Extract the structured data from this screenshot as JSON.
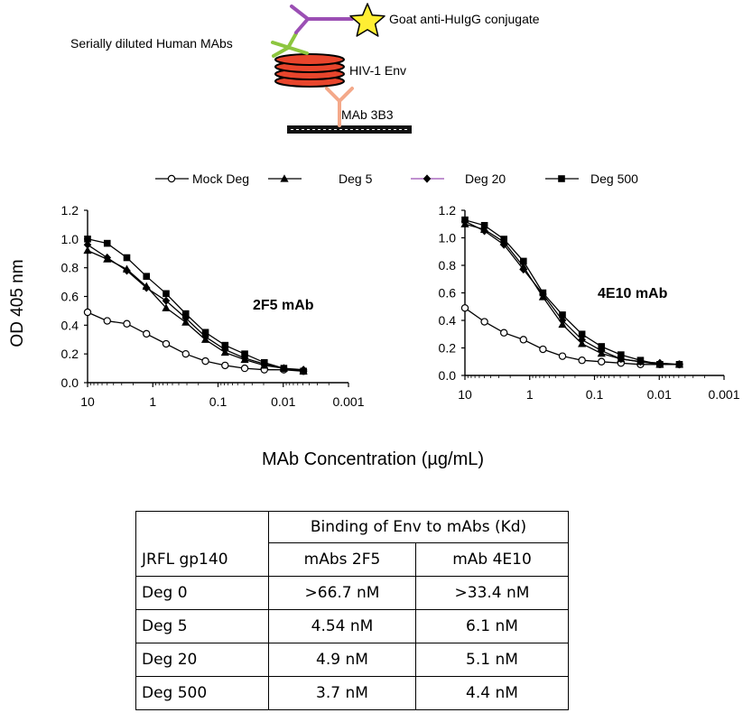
{
  "diagram": {
    "conjugate_label": "Goat anti-HuIgG conjugate",
    "human_mab_label": "Serially diluted Human MAbs",
    "env_label": "HIV-1 Env",
    "capture_label": "MAb 3B3"
  },
  "legend": [
    {
      "name": "Mock Deg",
      "marker": "open-circle"
    },
    {
      "name": "Deg 5",
      "marker": "triangle"
    },
    {
      "name": "Deg 20",
      "marker": "diamond"
    },
    {
      "name": "Deg 500",
      "marker": "square"
    }
  ],
  "ylabel": "OD 405 nm",
  "xlabel": "MAb Concentration (µg/mL)",
  "chart_data": [
    {
      "type": "line",
      "title": "2F5 mAb",
      "xscale": "log-reversed",
      "xlim": [
        10,
        0.001
      ],
      "ylim": [
        0,
        1.2
      ],
      "xticks": [
        "10",
        "1",
        "0.1",
        "0.01",
        "0.001"
      ],
      "yticks": [
        "0.0",
        "0.2",
        "0.4",
        "0.6",
        "0.8",
        "1.0",
        "1.2"
      ],
      "x": [
        10,
        5,
        2.5,
        1.25,
        0.625,
        0.3125,
        0.156,
        0.078,
        0.039,
        0.0195,
        0.0098,
        0.0049
      ],
      "series": [
        {
          "name": "Mock Deg",
          "values": [
            0.49,
            0.43,
            0.41,
            0.34,
            0.27,
            0.2,
            0.15,
            0.12,
            0.1,
            0.09,
            0.09,
            0.08
          ]
        },
        {
          "name": "Deg 5",
          "values": [
            0.92,
            0.86,
            0.79,
            0.67,
            0.52,
            0.42,
            0.3,
            0.21,
            0.16,
            0.12,
            0.1,
            0.08
          ]
        },
        {
          "name": "Deg 20",
          "values": [
            0.96,
            0.87,
            0.78,
            0.66,
            0.57,
            0.45,
            0.32,
            0.23,
            0.17,
            0.13,
            0.1,
            0.09
          ]
        },
        {
          "name": "Deg 500",
          "values": [
            1.0,
            0.97,
            0.87,
            0.74,
            0.62,
            0.48,
            0.35,
            0.26,
            0.2,
            0.14,
            0.1,
            0.08
          ]
        }
      ]
    },
    {
      "type": "line",
      "title": "4E10 mAb",
      "xscale": "log-reversed",
      "xlim": [
        10,
        0.001
      ],
      "ylim": [
        0,
        1.2
      ],
      "xticks": [
        "10",
        "1",
        "0.1",
        "0.01",
        "0.001"
      ],
      "yticks": [
        "0.0",
        "0.2",
        "0.4",
        "0.6",
        "0.8",
        "1.0",
        "1.2"
      ],
      "x": [
        10,
        5,
        2.5,
        1.25,
        0.625,
        0.3125,
        0.156,
        0.078,
        0.039,
        0.0195,
        0.0098,
        0.0049
      ],
      "series": [
        {
          "name": "Mock Deg",
          "values": [
            0.49,
            0.39,
            0.31,
            0.26,
            0.19,
            0.14,
            0.11,
            0.1,
            0.09,
            0.08,
            0.08,
            0.08
          ]
        },
        {
          "name": "Deg 5",
          "values": [
            1.1,
            1.06,
            0.97,
            0.79,
            0.57,
            0.37,
            0.23,
            0.16,
            0.12,
            0.1,
            0.08,
            0.08
          ]
        },
        {
          "name": "Deg 20",
          "values": [
            1.12,
            1.05,
            0.95,
            0.77,
            0.59,
            0.4,
            0.26,
            0.18,
            0.12,
            0.1,
            0.09,
            0.08
          ]
        },
        {
          "name": "Deg 500",
          "values": [
            1.13,
            1.09,
            0.99,
            0.83,
            0.6,
            0.44,
            0.3,
            0.21,
            0.15,
            0.11,
            0.08,
            0.08
          ]
        }
      ]
    }
  ],
  "table": {
    "header_top": "Binding of Env to mAbs (Kd)",
    "header_cols": [
      "JRFL gp140",
      "mAbs 2F5",
      "mAb 4E10"
    ],
    "rows": [
      [
        "Deg 0",
        ">66.7 nM",
        ">33.4 nM"
      ],
      [
        "Deg 5",
        "4.54 nM",
        "6.1 nM"
      ],
      [
        "Deg 20",
        "4.9 nM",
        "5.1 nM"
      ],
      [
        "Deg 500",
        "3.7 nM",
        "4.4 nM"
      ]
    ]
  },
  "colors": {
    "conjugate_arm": "#9b4fb4",
    "human_mab": "#8dc63f",
    "env_fill": "#e8452c",
    "capture_mab": "#f4a98a",
    "star": "#ffee33"
  }
}
